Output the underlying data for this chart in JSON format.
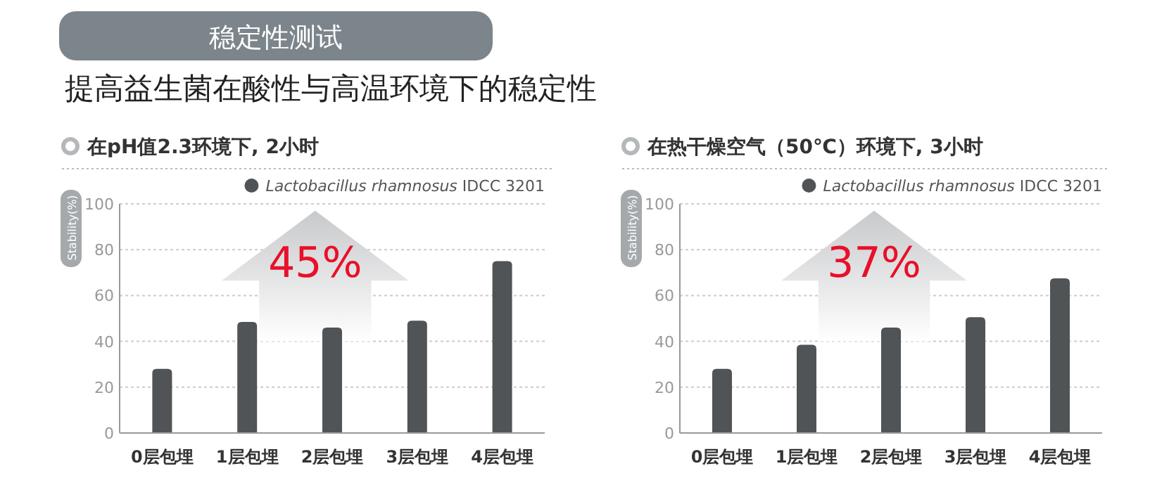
{
  "chart_data": [
    {
      "type": "bar",
      "title": "在pH值2.3环境下, 2小时",
      "ylabel": "Stability(%)",
      "annotations": [
        "稳定性测试",
        "提高益生菌在酸性与高温环境下的稳定性",
        "45%"
      ],
      "categories": [
        "0层包埋",
        "1层包埋",
        "2层包埋",
        "3层包埋",
        "4层包埋"
      ],
      "series": [
        {
          "name": "Lactobacillus rhamnosus IDCC 3201",
          "color": "#505456",
          "values": [
            28,
            48.5,
            46,
            49,
            75
          ]
        }
      ],
      "ylim": [
        0,
        100
      ],
      "yticks": [
        0,
        20,
        40,
        60,
        80,
        100
      ],
      "grid": "y",
      "legend": "top right"
    },
    {
      "type": "bar",
      "title": "在热干燥空气（50℃）环境下, 3小时",
      "ylabel": "Stability(%)",
      "annotations": [
        "37%"
      ],
      "categories": [
        "0层包埋",
        "1层包埋",
        "2层包埋",
        "3层包埋",
        "4层包埋"
      ],
      "series": [
        {
          "name": "Lactobacillus rhamnosus IDCC 3201",
          "color": "#505456",
          "values": [
            28,
            38.5,
            46,
            50.5,
            67.5
          ]
        }
      ],
      "ylim": [
        0,
        100
      ],
      "yticks": [
        0,
        20,
        40,
        60,
        80,
        100
      ],
      "grid": "y",
      "legend": "top right"
    }
  ]
}
